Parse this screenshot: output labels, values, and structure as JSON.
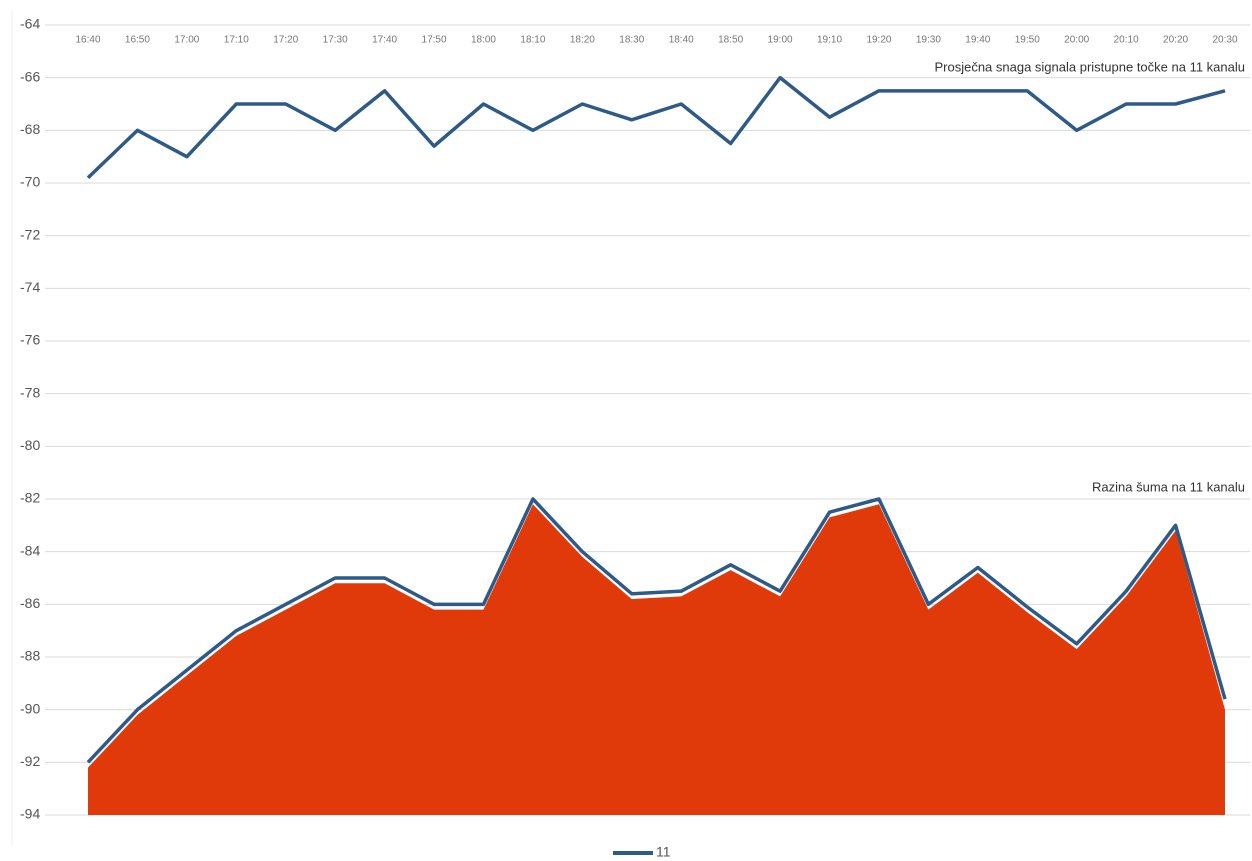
{
  "chart_data": {
    "type": "line",
    "categories": [
      "16:40",
      "16:50",
      "17:00",
      "17:10",
      "17:20",
      "17:30",
      "17:40",
      "17:50",
      "18:00",
      "18:10",
      "18:20",
      "18:30",
      "18:40",
      "18:50",
      "19:00",
      "19:10",
      "19:20",
      "19:30",
      "19:40",
      "19:50",
      "20:00",
      "20:10",
      "20:20",
      "20:30"
    ],
    "series": [
      {
        "type": "area",
        "color": "#e03a0a",
        "values": [
          -92.2,
          -90.2,
          -88.7,
          -87.2,
          -86.2,
          -85.2,
          -85.2,
          -86.2,
          -86.2,
          -82.2,
          -84.2,
          -85.8,
          -85.7,
          -84.7,
          -85.7,
          -82.7,
          -82.2,
          -86.2,
          -84.8,
          -86.3,
          -87.7,
          -85.7,
          -83.2,
          -90
        ]
      },
      {
        "name": "11",
        "color": "#2e5a88",
        "values": [
          -69.8,
          -68,
          -69,
          -67,
          -67,
          -68,
          -66.5,
          -68.6,
          -67,
          -68,
          -67,
          -67.6,
          -67,
          -68.5,
          -66,
          -67.5,
          -66.5,
          -66.5,
          -66.5,
          -66.5,
          -68,
          -67,
          -67,
          -66.5
        ]
      },
      {
        "color": "#2e5a88",
        "values": [
          -92,
          -90,
          -88.5,
          -87,
          -86,
          -85,
          -85,
          -86,
          -86,
          -82,
          -84,
          -85.6,
          -85.5,
          -84.5,
          -85.5,
          -82.5,
          -82,
          -86,
          -84.6,
          -86.1,
          -87.5,
          -85.5,
          -83,
          -89.6
        ]
      }
    ],
    "annotations": [
      "Prosječna snaga signala pristupne točke na 11 kanalu",
      "Razina šuma na 11 kanalu"
    ],
    "ylim": [
      -94,
      -64
    ],
    "yticks": [
      -94,
      -92,
      -90,
      -88,
      -86,
      -84,
      -82,
      -80,
      -78,
      -76,
      -74,
      -72,
      -70,
      -68,
      -66,
      -64
    ],
    "grid": true
  }
}
